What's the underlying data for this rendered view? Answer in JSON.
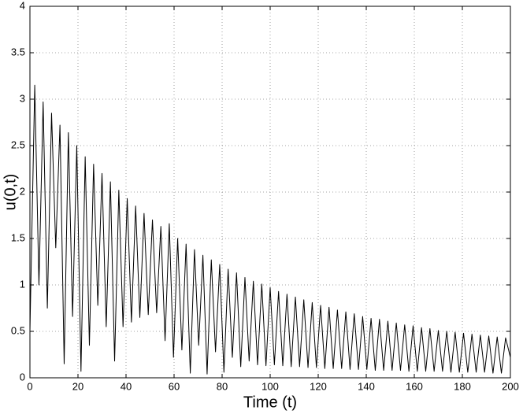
{
  "chart_data": {
    "type": "line",
    "xlabel": "Time (t)",
    "ylabel": "u(0,t)",
    "x": [
      0,
      2,
      3.75,
      5.5,
      7.25,
      9,
      10.75,
      12.5,
      14.25,
      16,
      17.75,
      19.5,
      21.25,
      23,
      24.75,
      26.5,
      28.25,
      30,
      31.75,
      33.5,
      35.25,
      37,
      38.75,
      40.5,
      42.25,
      44,
      45.75,
      47.5,
      49.25,
      51,
      52.75,
      54.5,
      56.25,
      58,
      59.75,
      61.5,
      63.25,
      65,
      66.75,
      68.5,
      70.25,
      72,
      73.75,
      75.5,
      77.25,
      79,
      80.75,
      82.5,
      84.25,
      86,
      87.75,
      89.5,
      91.25,
      93,
      94.75,
      96.5,
      98.25,
      100,
      101.75,
      103.5,
      105.25,
      107,
      108.75,
      110.5,
      112.25,
      114,
      115.75,
      117.5,
      119.25,
      121,
      122.75,
      124.5,
      126.25,
      128,
      129.75,
      131.5,
      133.25,
      135,
      136.75,
      138.5,
      140.25,
      142,
      143.75,
      145.5,
      147.25,
      149,
      150.75,
      152.5,
      154.25,
      156,
      157.75,
      159.5,
      161.25,
      163,
      164.75,
      166.5,
      168.25,
      170,
      171.75,
      173.5,
      175.25,
      177,
      178.75,
      180.5,
      182.25,
      184,
      185.75,
      187.5,
      189.25,
      191,
      192.75,
      194.5,
      196.25,
      198,
      200
    ],
    "series": [
      {
        "name": "u(0,t)",
        "color": "#000000",
        "values": [
          0.5,
          3.15,
          1.0,
          2.97,
          0.75,
          2.85,
          1.4,
          2.72,
          0.15,
          2.64,
          0.66,
          2.5,
          0.07,
          2.38,
          0.35,
          2.3,
          0.78,
          2.2,
          0.55,
          2.11,
          0.18,
          2.02,
          0.55,
          1.93,
          0.6,
          1.85,
          0.65,
          1.77,
          0.68,
          1.7,
          0.7,
          1.63,
          0.4,
          1.66,
          0.22,
          1.5,
          0.3,
          1.44,
          0.05,
          1.38,
          0.35,
          1.32,
          0.04,
          1.27,
          0.28,
          1.22,
          0.06,
          1.17,
          0.22,
          1.13,
          0.12,
          1.08,
          0.18,
          1.04,
          0.14,
          1.01,
          0.13,
          0.97,
          0.14,
          0.93,
          0.13,
          0.9,
          0.12,
          0.87,
          0.12,
          0.84,
          0.11,
          0.81,
          0.11,
          0.78,
          0.1,
          0.76,
          0.1,
          0.73,
          0.1,
          0.71,
          0.09,
          0.69,
          0.09,
          0.66,
          0.09,
          0.64,
          0.08,
          0.63,
          0.08,
          0.61,
          0.08,
          0.59,
          0.08,
          0.57,
          0.07,
          0.56,
          0.07,
          0.54,
          0.07,
          0.53,
          0.07,
          0.51,
          0.07,
          0.5,
          0.06,
          0.49,
          0.06,
          0.48,
          0.06,
          0.47,
          0.06,
          0.46,
          0.06,
          0.45,
          0.05,
          0.44,
          0.05,
          0.43,
          0.22
        ]
      }
    ],
    "xlim": [
      0,
      200
    ],
    "xticks": [
      0,
      20,
      40,
      60,
      80,
      100,
      120,
      140,
      160,
      180,
      200
    ],
    "ylim": [
      0,
      4
    ],
    "yticks": [
      0,
      0.5,
      1,
      1.5,
      2,
      2.5,
      3,
      3.5,
      4
    ],
    "grid": true
  }
}
